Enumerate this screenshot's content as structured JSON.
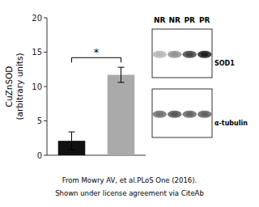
{
  "chart_data": {
    "type": "bar",
    "ylabel": "CuZnSOD\n(arbitrary units)",
    "categories": [
      null,
      null
    ],
    "values": [
      2.1,
      11.7
    ],
    "errors": [
      1.3,
      1.1
    ],
    "colors": [
      "#111111",
      "#aaaaaa"
    ],
    "ylim": [
      0,
      20
    ],
    "yticks": [
      0,
      5,
      10,
      15,
      20
    ],
    "grid": false,
    "tick_labels": "y",
    "annotations": [
      {
        "text": "*",
        "y": 14.2
      }
    ],
    "caption": [
      "From Mowry AV, et al.PLoS One (2016).",
      "Shown under license agreement via CiteAb"
    ],
    "blot": {
      "lanes": [
        "NR",
        "NR",
        "PR",
        "PR"
      ],
      "bands": [
        {
          "label": "SOD1",
          "intensities": [
            0.28,
            0.42,
            0.72,
            0.88
          ]
        },
        {
          "label": "α-tubulin",
          "intensities": [
            0.55,
            0.65,
            0.6,
            0.62
          ]
        }
      ]
    }
  }
}
